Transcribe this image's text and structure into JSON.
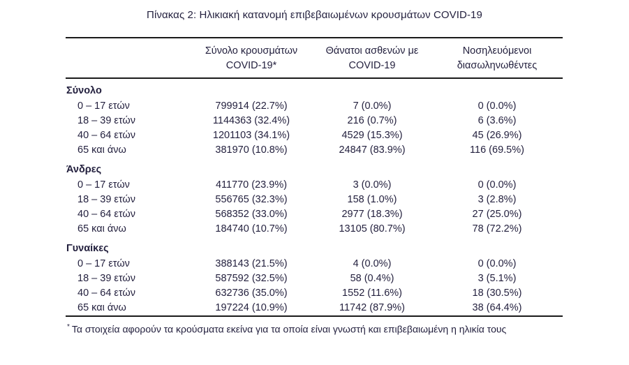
{
  "title": "Πίνακας 2: Ηλικιακή κατανομή επιβεβαιωμένων κρουσμάτων COVID-19",
  "table": {
    "columns": {
      "cases": {
        "line1": "Σύνολο κρουσμάτων",
        "line2": "COVID-19*"
      },
      "deaths": {
        "line1": "Θάνατοι ασθενών με",
        "line2": "COVID-19"
      },
      "intubated": {
        "line1": "Νοσηλευόμενοι",
        "line2": "διασωληνωθέντες"
      }
    },
    "sections": [
      {
        "header": "Σύνολο",
        "rows": [
          {
            "label": "0 – 17 ετών",
            "cases": "799914 (22.7%)",
            "deaths": "7 (0.0%)",
            "intubated": "0 (0.0%)"
          },
          {
            "label": "18 – 39 ετών",
            "cases": "1144363 (32.4%)",
            "deaths": "216 (0.7%)",
            "intubated": "6 (3.6%)"
          },
          {
            "label": "40 – 64 ετών",
            "cases": "1201103 (34.1%)",
            "deaths": "4529 (15.3%)",
            "intubated": "45 (26.9%)"
          },
          {
            "label": "65 και άνω",
            "cases": "381970 (10.8%)",
            "deaths": "24847 (83.9%)",
            "intubated": "116 (69.5%)"
          }
        ]
      },
      {
        "header": "Άνδρες",
        "rows": [
          {
            "label": "0 – 17 ετών",
            "cases": "411770 (23.9%)",
            "deaths": "3 (0.0%)",
            "intubated": "0 (0.0%)"
          },
          {
            "label": "18 – 39 ετών",
            "cases": "556765 (32.3%)",
            "deaths": "158 (1.0%)",
            "intubated": "3 (2.8%)"
          },
          {
            "label": "40 – 64 ετών",
            "cases": "568352 (33.0%)",
            "deaths": "2977 (18.3%)",
            "intubated": "27 (25.0%)"
          },
          {
            "label": "65 και άνω",
            "cases": "184740 (10.7%)",
            "deaths": "13105 (80.7%)",
            "intubated": "78 (72.2%)"
          }
        ]
      },
      {
        "header": "Γυναίκες",
        "rows": [
          {
            "label": "0 – 17 ετών",
            "cases": "388143 (21.5%)",
            "deaths": "4 (0.0%)",
            "intubated": "0 (0.0%)"
          },
          {
            "label": "18 – 39 ετών",
            "cases": "587592 (32.5%)",
            "deaths": "58 (0.4%)",
            "intubated": "3 (5.1%)"
          },
          {
            "label": "40 – 64 ετών",
            "cases": "632736 (35.0%)",
            "deaths": "1552 (11.6%)",
            "intubated": "18 (30.5%)"
          },
          {
            "label": "65 και άνω",
            "cases": "197224 (10.9%)",
            "deaths": "11742 (87.9%)",
            "intubated": "38 (64.4%)"
          }
        ]
      }
    ]
  },
  "footnote": {
    "marker": "*",
    "text": "Τα στοιχεία αφορούν τα κρούσματα εκείνα για τα οποία είναι γνωστή και επιβεβαιωμένη η ηλικία τους"
  },
  "colors": {
    "text": "#221f3d",
    "rule": "#1a1a1a",
    "background": "#ffffff"
  }
}
